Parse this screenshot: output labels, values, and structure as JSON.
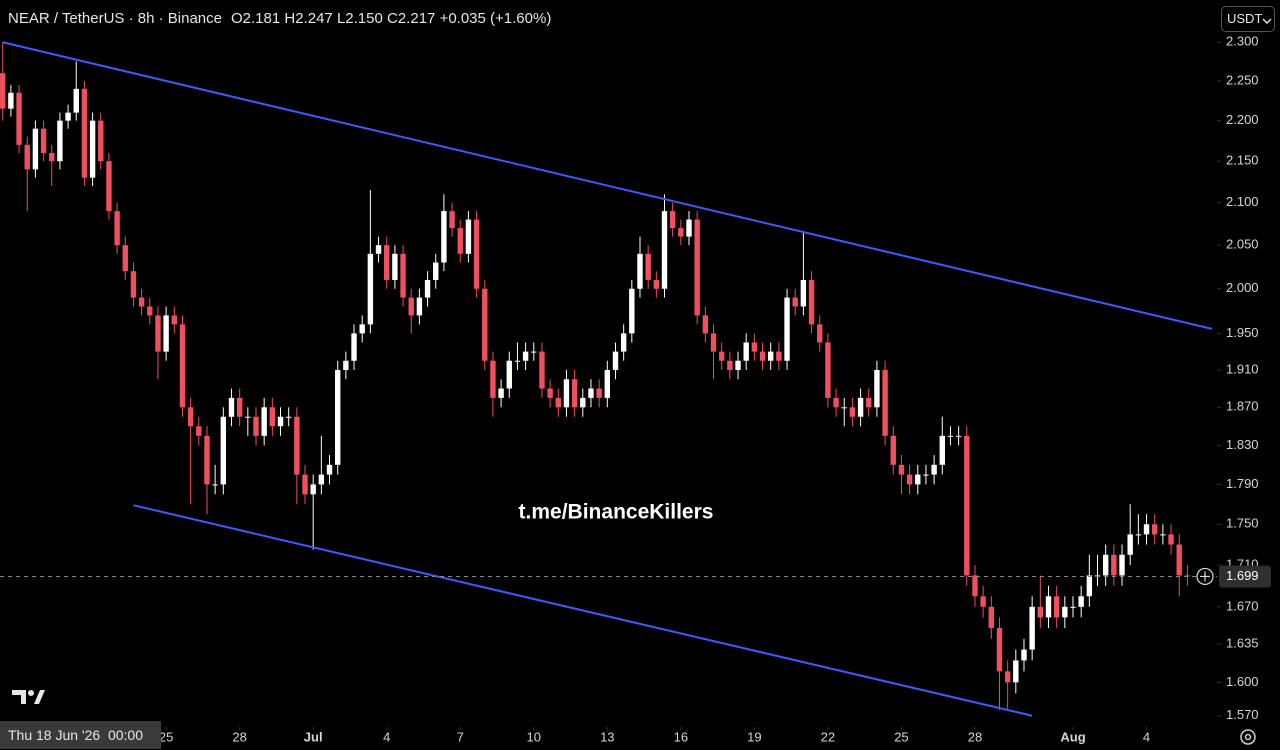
{
  "chart_data": {
    "type": "candlestick",
    "title": "NEAR / TetherUS · 8h · Binance",
    "ohlc_legend": [
      {
        "label": "O",
        "value": "2.181"
      },
      {
        "label": "H",
        "value": "2.247"
      },
      {
        "label": "L",
        "value": "2.150"
      },
      {
        "label": "C",
        "value": "2.217"
      }
    ],
    "change": "+0.035 (+1.60%)",
    "currency": "USDT",
    "watermark": "t.me/BinanceKillers",
    "crosshair_label": "Thu 18 Jun '26  00:00",
    "up_color": "#ffffff",
    "down_color": "#ef4f5f",
    "log_scale": true,
    "last_price": 1.699,
    "xlim": [
      "2026-06-18 05:20",
      "2026-08-06 21:00"
    ],
    "ylim": [
      1.56,
      2.316
    ],
    "yticks": [
      {
        "value": 2.3,
        "label": "2.300"
      },
      {
        "value": 2.25,
        "label": "2.250"
      },
      {
        "value": 2.2,
        "label": "2.200"
      },
      {
        "value": 2.15,
        "label": "2.150"
      },
      {
        "value": 2.1,
        "label": "2.100"
      },
      {
        "value": 2.05,
        "label": "2.050"
      },
      {
        "value": 2.0,
        "label": "2.000"
      },
      {
        "value": 1.95,
        "label": "1.950"
      },
      {
        "value": 1.91,
        "label": "1.910"
      },
      {
        "value": 1.87,
        "label": "1.870"
      },
      {
        "value": 1.83,
        "label": "1.830"
      },
      {
        "value": 1.79,
        "label": "1.790"
      },
      {
        "value": 1.75,
        "label": "1.750"
      },
      {
        "value": 1.71,
        "label": "1.710"
      },
      {
        "value": 1.67,
        "label": "1.670"
      },
      1.635,
      {
        "value": 1.6,
        "label": "1.600"
      },
      {
        "value": 1.57,
        "label": "1.570"
      }
    ],
    "xticks": [
      {
        "value": "2026-06-25 00:00",
        "label": "25"
      },
      {
        "value": "2026-06-28 00:00",
        "label": "28"
      },
      {
        "value": "2026-07-01 00:00",
        "label": "Jul"
      },
      {
        "value": "2026-07-04 00:00",
        "label": "4"
      },
      {
        "value": "2026-07-07 00:00",
        "label": "7"
      },
      {
        "value": "2026-07-10 00:00",
        "label": "10"
      },
      {
        "value": "2026-07-13 00:00",
        "label": "13"
      },
      {
        "value": "2026-07-16 00:00",
        "label": "16"
      },
      {
        "value": "2026-07-19 00:00",
        "label": "19"
      },
      {
        "value": "2026-07-22 00:00",
        "label": "22"
      },
      {
        "value": "2026-07-25 00:00",
        "label": "25"
      },
      {
        "value": "2026-07-28 00:00",
        "label": "28"
      },
      {
        "value": "2026-08-01 00:00",
        "label": "Aug"
      },
      {
        "value": "2026-08-04 00:00",
        "label": "4"
      }
    ],
    "trendlines": [
      {
        "color": "#3d5afe",
        "points": [
          {
            "x": "2026-06-18 08:00",
            "y": 2.3
          },
          {
            "x": "2026-08-06 16:00",
            "y": 1.955
          }
        ]
      },
      {
        "color": "#3d5afe",
        "points": [
          {
            "x": "2026-06-23 16:00",
            "y": 1.769
          },
          {
            "x": "2026-07-30 08:00",
            "y": 1.57
          }
        ]
      }
    ],
    "x": [
      "2026-06-18 08:00",
      "2026-06-18 16:00",
      "2026-06-19 00:00",
      "2026-06-19 08:00",
      "2026-06-19 16:00",
      "2026-06-20 00:00",
      "2026-06-20 08:00",
      "2026-06-20 16:00",
      "2026-06-21 00:00",
      "2026-06-21 08:00",
      "2026-06-21 16:00",
      "2026-06-22 00:00",
      "2026-06-22 08:00",
      "2026-06-22 16:00",
      "2026-06-23 00:00",
      "2026-06-23 08:00",
      "2026-06-23 16:00",
      "2026-06-24 00:00",
      "2026-06-24 08:00",
      "2026-06-24 16:00",
      "2026-06-25 00:00",
      "2026-06-25 08:00",
      "2026-06-25 16:00",
      "2026-06-26 00:00",
      "2026-06-26 08:00",
      "2026-06-26 16:00",
      "2026-06-27 00:00",
      "2026-06-27 08:00",
      "2026-06-27 16:00",
      "2026-06-28 00:00",
      "2026-06-28 08:00",
      "2026-06-28 16:00",
      "2026-06-29 00:00",
      "2026-06-29 08:00",
      "2026-06-29 16:00",
      "2026-06-30 00:00",
      "2026-06-30 08:00",
      "2026-06-30 16:00",
      "2026-07-01 00:00",
      "2026-07-01 08:00",
      "2026-07-01 16:00",
      "2026-07-02 00:00",
      "2026-07-02 08:00",
      "2026-07-02 16:00",
      "2026-07-03 00:00",
      "2026-07-03 08:00",
      "2026-07-03 16:00",
      "2026-07-04 00:00",
      "2026-07-04 08:00",
      "2026-07-04 16:00",
      "2026-07-05 00:00",
      "2026-07-05 08:00",
      "2026-07-05 16:00",
      "2026-07-06 00:00",
      "2026-07-06 08:00",
      "2026-07-06 16:00",
      "2026-07-07 00:00",
      "2026-07-07 08:00",
      "2026-07-07 16:00",
      "2026-07-08 00:00",
      "2026-07-08 08:00",
      "2026-07-08 16:00",
      "2026-07-09 00:00",
      "2026-07-09 08:00",
      "2026-07-09 16:00",
      "2026-07-10 00:00",
      "2026-07-10 08:00",
      "2026-07-10 16:00",
      "2026-07-11 00:00",
      "2026-07-11 08:00",
      "2026-07-11 16:00",
      "2026-07-12 00:00",
      "2026-07-12 08:00",
      "2026-07-12 16:00",
      "2026-07-13 00:00",
      "2026-07-13 08:00",
      "2026-07-13 16:00",
      "2026-07-14 00:00",
      "2026-07-14 08:00",
      "2026-07-14 16:00",
      "2026-07-15 00:00",
      "2026-07-15 08:00",
      "2026-07-15 16:00",
      "2026-07-16 00:00",
      "2026-07-16 08:00",
      "2026-07-16 16:00",
      "2026-07-17 00:00",
      "2026-07-17 08:00",
      "2026-07-17 16:00",
      "2026-07-18 00:00",
      "2026-07-18 08:00",
      "2026-07-18 16:00",
      "2026-07-19 00:00",
      "2026-07-19 08:00",
      "2026-07-19 16:00",
      "2026-07-20 00:00",
      "2026-07-20 08:00",
      "2026-07-20 16:00",
      "2026-07-21 00:00",
      "2026-07-21 08:00",
      "2026-07-21 16:00",
      "2026-07-22 00:00",
      "2026-07-22 08:00",
      "2026-07-22 16:00",
      "2026-07-23 00:00",
      "2026-07-23 08:00",
      "2026-07-23 16:00",
      "2026-07-24 00:00",
      "2026-07-24 08:00",
      "2026-07-24 16:00",
      "2026-07-25 00:00",
      "2026-07-25 08:00",
      "2026-07-25 16:00",
      "2026-07-26 00:00",
      "2026-07-26 08:00",
      "2026-07-26 16:00",
      "2026-07-27 00:00",
      "2026-07-27 08:00",
      "2026-07-27 16:00",
      "2026-07-28 00:00",
      "2026-07-28 08:00",
      "2026-07-28 16:00",
      "2026-07-29 00:00",
      "2026-07-29 08:00",
      "2026-07-29 16:00",
      "2026-07-30 00:00",
      "2026-07-30 08:00",
      "2026-07-30 16:00",
      "2026-07-31 00:00",
      "2026-07-31 08:00",
      "2026-07-31 16:00",
      "2026-08-01 00:00",
      "2026-08-01 08:00",
      "2026-08-01 16:00",
      "2026-08-02 00:00",
      "2026-08-02 08:00",
      "2026-08-02 16:00",
      "2026-08-03 00:00",
      "2026-08-03 08:00",
      "2026-08-03 16:00",
      "2026-08-04 00:00",
      "2026-08-04 08:00",
      "2026-08-04 16:00",
      "2026-08-05 00:00",
      "2026-08-05 08:00",
      "2026-08-05 16:00"
    ],
    "candles": [
      [
        2.26,
        2.3,
        2.2,
        2.215
      ],
      [
        2.215,
        2.245,
        2.205,
        2.235
      ],
      [
        2.235,
        2.245,
        2.16,
        2.17
      ],
      [
        2.17,
        2.18,
        2.09,
        2.14
      ],
      [
        2.14,
        2.2,
        2.13,
        2.19
      ],
      [
        2.19,
        2.2,
        2.15,
        2.16
      ],
      [
        2.16,
        2.17,
        2.12,
        2.15
      ],
      [
        2.15,
        2.21,
        2.14,
        2.2
      ],
      [
        2.2,
        2.22,
        2.19,
        2.21
      ],
      [
        2.21,
        2.275,
        2.2,
        2.24
      ],
      [
        2.24,
        2.25,
        2.12,
        2.13
      ],
      [
        2.13,
        2.21,
        2.12,
        2.2
      ],
      [
        2.2,
        2.21,
        2.14,
        2.15
      ],
      [
        2.15,
        2.16,
        2.08,
        2.09
      ],
      [
        2.09,
        2.1,
        2.04,
        2.05
      ],
      [
        2.05,
        2.06,
        2.01,
        2.02
      ],
      [
        2.02,
        2.03,
        1.98,
        1.99
      ],
      [
        1.99,
        2.0,
        1.97,
        1.98
      ],
      [
        1.98,
        1.99,
        1.96,
        1.97
      ],
      [
        1.97,
        1.98,
        1.9,
        1.93
      ],
      [
        1.93,
        1.98,
        1.92,
        1.97
      ],
      [
        1.97,
        1.98,
        1.95,
        1.96
      ],
      [
        1.96,
        1.97,
        1.86,
        1.87
      ],
      [
        1.87,
        1.88,
        1.77,
        1.85
      ],
      [
        1.85,
        1.86,
        1.83,
        1.84
      ],
      [
        1.84,
        1.85,
        1.76,
        1.79
      ],
      [
        1.79,
        1.81,
        1.78,
        1.79
      ],
      [
        1.79,
        1.87,
        1.78,
        1.86
      ],
      [
        1.86,
        1.89,
        1.85,
        1.88
      ],
      [
        1.88,
        1.89,
        1.85,
        1.86
      ],
      [
        1.86,
        1.87,
        1.84,
        1.86
      ],
      [
        1.86,
        1.87,
        1.83,
        1.84
      ],
      [
        1.84,
        1.88,
        1.83,
        1.87
      ],
      [
        1.87,
        1.88,
        1.84,
        1.85
      ],
      [
        1.85,
        1.87,
        1.84,
        1.86
      ],
      [
        1.86,
        1.87,
        1.85,
        1.86
      ],
      [
        1.86,
        1.87,
        1.77,
        1.8
      ],
      [
        1.8,
        1.81,
        1.77,
        1.78
      ],
      [
        1.78,
        1.8,
        1.725,
        1.79
      ],
      [
        1.79,
        1.84,
        1.78,
        1.8
      ],
      [
        1.8,
        1.82,
        1.79,
        1.81
      ],
      [
        1.81,
        1.92,
        1.8,
        1.91
      ],
      [
        1.91,
        1.93,
        1.9,
        1.92
      ],
      [
        1.92,
        1.96,
        1.91,
        1.95
      ],
      [
        1.95,
        1.97,
        1.94,
        1.96
      ],
      [
        1.96,
        2.115,
        1.95,
        2.04
      ],
      [
        2.04,
        2.06,
        2.03,
        2.05
      ],
      [
        2.05,
        2.06,
        2.0,
        2.01
      ],
      [
        2.01,
        2.05,
        2.0,
        2.04
      ],
      [
        2.04,
        2.05,
        1.98,
        1.99
      ],
      [
        1.99,
        2.0,
        1.95,
        1.97
      ],
      [
        1.97,
        2.0,
        1.96,
        1.99
      ],
      [
        1.99,
        2.02,
        1.98,
        2.01
      ],
      [
        2.01,
        2.04,
        2.0,
        2.03
      ],
      [
        2.03,
        2.11,
        2.02,
        2.09
      ],
      [
        2.09,
        2.1,
        2.06,
        2.07
      ],
      [
        2.07,
        2.08,
        2.03,
        2.04
      ],
      [
        2.04,
        2.09,
        2.03,
        2.08
      ],
      [
        2.08,
        2.09,
        1.99,
        2.0
      ],
      [
        2.0,
        2.01,
        1.91,
        1.92
      ],
      [
        1.92,
        1.93,
        1.86,
        1.88
      ],
      [
        1.88,
        1.9,
        1.87,
        1.89
      ],
      [
        1.89,
        1.93,
        1.88,
        1.92
      ],
      [
        1.92,
        1.94,
        1.91,
        1.92
      ],
      [
        1.92,
        1.94,
        1.91,
        1.93
      ],
      [
        1.93,
        1.94,
        1.92,
        1.93
      ],
      [
        1.93,
        1.94,
        1.88,
        1.89
      ],
      [
        1.89,
        1.9,
        1.87,
        1.88
      ],
      [
        1.88,
        1.89,
        1.86,
        1.87
      ],
      [
        1.87,
        1.91,
        1.86,
        1.9
      ],
      [
        1.9,
        1.91,
        1.86,
        1.87
      ],
      [
        1.87,
        1.89,
        1.86,
        1.88
      ],
      [
        1.88,
        1.9,
        1.87,
        1.89
      ],
      [
        1.89,
        1.9,
        1.87,
        1.88
      ],
      [
        1.88,
        1.92,
        1.87,
        1.91
      ],
      [
        1.91,
        1.94,
        1.9,
        1.93
      ],
      [
        1.93,
        1.96,
        1.92,
        1.95
      ],
      [
        1.95,
        2.01,
        1.94,
        2.0
      ],
      [
        2.0,
        2.06,
        1.99,
        2.04
      ],
      [
        2.04,
        2.05,
        2.0,
        2.01
      ],
      [
        2.01,
        2.02,
        1.99,
        2.0
      ],
      [
        2.0,
        2.11,
        1.99,
        2.09
      ],
      [
        2.09,
        2.1,
        2.06,
        2.07
      ],
      [
        2.07,
        2.08,
        2.05,
        2.06
      ],
      [
        2.06,
        2.09,
        2.05,
        2.08
      ],
      [
        2.08,
        2.09,
        1.96,
        1.97
      ],
      [
        1.97,
        1.98,
        1.94,
        1.95
      ],
      [
        1.95,
        1.96,
        1.9,
        1.93
      ],
      [
        1.93,
        1.94,
        1.91,
        1.92
      ],
      [
        1.92,
        1.93,
        1.9,
        1.91
      ],
      [
        1.91,
        1.93,
        1.9,
        1.92
      ],
      [
        1.92,
        1.95,
        1.91,
        1.94
      ],
      [
        1.94,
        1.95,
        1.92,
        1.93
      ],
      [
        1.93,
        1.94,
        1.91,
        1.92
      ],
      [
        1.92,
        1.94,
        1.91,
        1.93
      ],
      [
        1.93,
        1.94,
        1.91,
        1.92
      ],
      [
        1.92,
        2.0,
        1.91,
        1.99
      ],
      [
        1.99,
        2.0,
        1.97,
        1.98
      ],
      [
        1.98,
        2.065,
        1.97,
        2.01
      ],
      [
        2.01,
        2.02,
        1.95,
        1.96
      ],
      [
        1.96,
        1.97,
        1.93,
        1.94
      ],
      [
        1.94,
        1.95,
        1.87,
        1.88
      ],
      [
        1.88,
        1.89,
        1.86,
        1.87
      ],
      [
        1.87,
        1.88,
        1.85,
        1.87
      ],
      [
        1.87,
        1.88,
        1.85,
        1.86
      ],
      [
        1.86,
        1.89,
        1.85,
        1.88
      ],
      [
        1.88,
        1.89,
        1.86,
        1.87
      ],
      [
        1.87,
        1.92,
        1.86,
        1.91
      ],
      [
        1.91,
        1.92,
        1.83,
        1.84
      ],
      [
        1.84,
        1.85,
        1.8,
        1.81
      ],
      [
        1.81,
        1.82,
        1.78,
        1.8
      ],
      [
        1.8,
        1.81,
        1.78,
        1.79
      ],
      [
        1.79,
        1.81,
        1.78,
        1.8
      ],
      [
        1.8,
        1.81,
        1.79,
        1.8
      ],
      [
        1.8,
        1.82,
        1.79,
        1.81
      ],
      [
        1.81,
        1.86,
        1.8,
        1.84
      ],
      [
        1.84,
        1.85,
        1.83,
        1.84
      ],
      [
        1.84,
        1.85,
        1.83,
        1.84
      ],
      [
        1.84,
        1.85,
        1.69,
        1.7
      ],
      [
        1.7,
        1.71,
        1.67,
        1.68
      ],
      [
        1.68,
        1.69,
        1.66,
        1.67
      ],
      [
        1.67,
        1.68,
        1.64,
        1.65
      ],
      [
        1.65,
        1.66,
        1.575,
        1.61
      ],
      [
        1.61,
        1.62,
        1.575,
        1.6
      ],
      [
        1.6,
        1.63,
        1.59,
        1.62
      ],
      [
        1.62,
        1.64,
        1.61,
        1.63
      ],
      [
        1.63,
        1.68,
        1.62,
        1.67
      ],
      [
        1.67,
        1.7,
        1.65,
        1.66
      ],
      [
        1.66,
        1.69,
        1.65,
        1.68
      ],
      [
        1.68,
        1.69,
        1.65,
        1.66
      ],
      [
        1.66,
        1.68,
        1.65,
        1.67
      ],
      [
        1.67,
        1.68,
        1.66,
        1.67
      ],
      [
        1.67,
        1.69,
        1.66,
        1.68
      ],
      [
        1.68,
        1.72,
        1.67,
        1.7
      ],
      [
        1.7,
        1.72,
        1.69,
        1.7
      ],
      [
        1.7,
        1.73,
        1.69,
        1.72
      ],
      [
        1.72,
        1.73,
        1.69,
        1.7
      ],
      [
        1.7,
        1.73,
        1.69,
        1.72
      ],
      [
        1.72,
        1.77,
        1.71,
        1.74
      ],
      [
        1.74,
        1.76,
        1.73,
        1.74
      ],
      [
        1.74,
        1.76,
        1.73,
        1.75
      ],
      [
        1.75,
        1.76,
        1.73,
        1.74
      ],
      [
        1.74,
        1.75,
        1.73,
        1.74
      ],
      [
        1.74,
        1.75,
        1.72,
        1.73
      ],
      [
        1.73,
        1.74,
        1.68,
        1.7
      ],
      [
        1.7,
        1.71,
        1.69,
        1.699
      ]
    ]
  }
}
